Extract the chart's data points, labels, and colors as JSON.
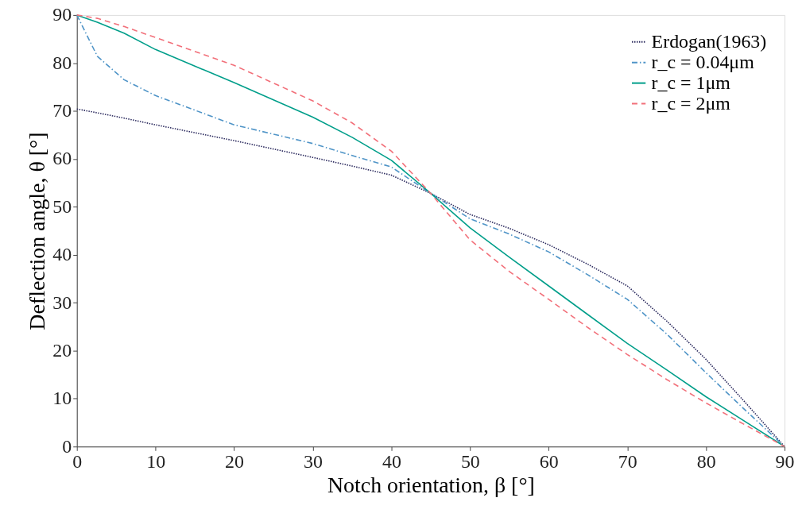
{
  "chart_data": {
    "type": "line",
    "xlabel": "Notch orientation, β [°]",
    "ylabel": "Deflection angle, θ [°]",
    "xlim": [
      0,
      90
    ],
    "ylim": [
      0,
      90
    ],
    "xticks": [
      0,
      10,
      20,
      30,
      40,
      50,
      60,
      70,
      80,
      90
    ],
    "yticks": [
      0,
      10,
      20,
      30,
      40,
      50,
      60,
      70,
      80,
      90
    ],
    "grid": false,
    "legend": "top right",
    "marker": "none",
    "x": [
      0,
      2.6,
      6,
      10,
      20,
      30,
      35,
      40,
      45,
      50,
      55,
      60,
      65,
      70,
      75,
      80,
      85,
      90
    ],
    "series": [
      {
        "name": "Erdogan(1963)",
        "color": "#2b2a5e",
        "line_style": "dotted",
        "values": [
          70.4,
          69.6,
          68.5,
          67.1,
          63.8,
          60.3,
          58.5,
          56.6,
          52.8,
          48.4,
          45.5,
          42.1,
          38,
          33.5,
          26.2,
          18.2,
          9.2,
          0
        ]
      },
      {
        "name": "r_c = 0.04μm",
        "color": "#4f94c7",
        "line_style": "dashdot",
        "values": [
          90,
          81.4,
          76.5,
          73.2,
          67.1,
          63.2,
          60.7,
          58.3,
          52.8,
          47.5,
          44.3,
          40.6,
          35.8,
          30.7,
          23.5,
          15.4,
          7.6,
          0
        ]
      },
      {
        "name": "r_c = 1μm",
        "color": "#009e8a",
        "line_style": "solid",
        "values": [
          90,
          88.5,
          86.2,
          82.8,
          75.9,
          68.7,
          64.5,
          59.7,
          52.8,
          45.6,
          39.5,
          33.5,
          27.5,
          21.5,
          16,
          10.4,
          5.2,
          0
        ]
      },
      {
        "name": "r_c = 2μm",
        "color": "#f2707a",
        "line_style": "dashed",
        "values": [
          90,
          89.3,
          87.6,
          85.3,
          79.5,
          72.1,
          67.5,
          61.6,
          52.8,
          43.1,
          36.5,
          30.7,
          24.8,
          19.2,
          14,
          9.1,
          4.5,
          0
        ]
      }
    ]
  }
}
